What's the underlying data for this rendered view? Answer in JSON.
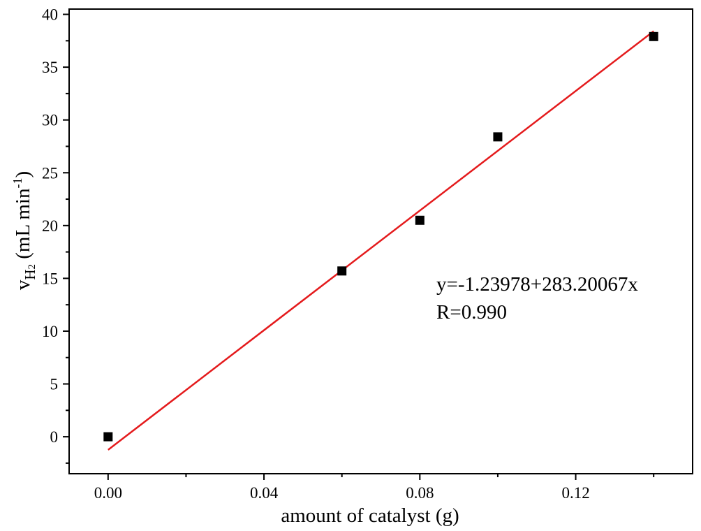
{
  "chart_data": {
    "type": "scatter",
    "title": "",
    "xlabel": "amount of catalyst (g)",
    "ylabel": {
      "main": "v",
      "subscript": "H",
      "subscript2": "2",
      "unit_open": " (mL min",
      "superscript": "-1",
      "unit_close": ")"
    },
    "xlim": [
      -0.01,
      0.15
    ],
    "ylim": [
      -3.5,
      40.5
    ],
    "x_ticks": [
      0.0,
      0.04,
      0.08,
      0.12
    ],
    "x_tick_labels": [
      "0.00",
      "0.04",
      "0.08",
      "0.12"
    ],
    "x_minor_ticks": [
      0.02,
      0.06,
      0.1,
      0.14
    ],
    "y_ticks": [
      0,
      5,
      10,
      15,
      20,
      25,
      30,
      35,
      40
    ],
    "y_tick_labels": [
      "0",
      "5",
      "10",
      "15",
      "20",
      "25",
      "30",
      "35",
      "40"
    ],
    "y_minor_ticks": [
      -2.5,
      2.5,
      7.5,
      12.5,
      17.5,
      22.5,
      27.5,
      32.5,
      37.5
    ],
    "grid": false,
    "series": [
      {
        "marker": "square",
        "color": "#000000",
        "x": [
          0.0,
          0.06,
          0.08,
          0.1,
          0.14
        ],
        "y": [
          0.0,
          15.7,
          20.5,
          28.4,
          37.9
        ]
      }
    ],
    "fit_line": {
      "color": "#e41a1c",
      "intercept": -1.23978,
      "slope": 283.20067,
      "x_range": [
        0.0,
        0.14
      ]
    },
    "annotations": {
      "equation": "y=-1.23978+283.20067x",
      "r_value": "R=0.990"
    }
  }
}
